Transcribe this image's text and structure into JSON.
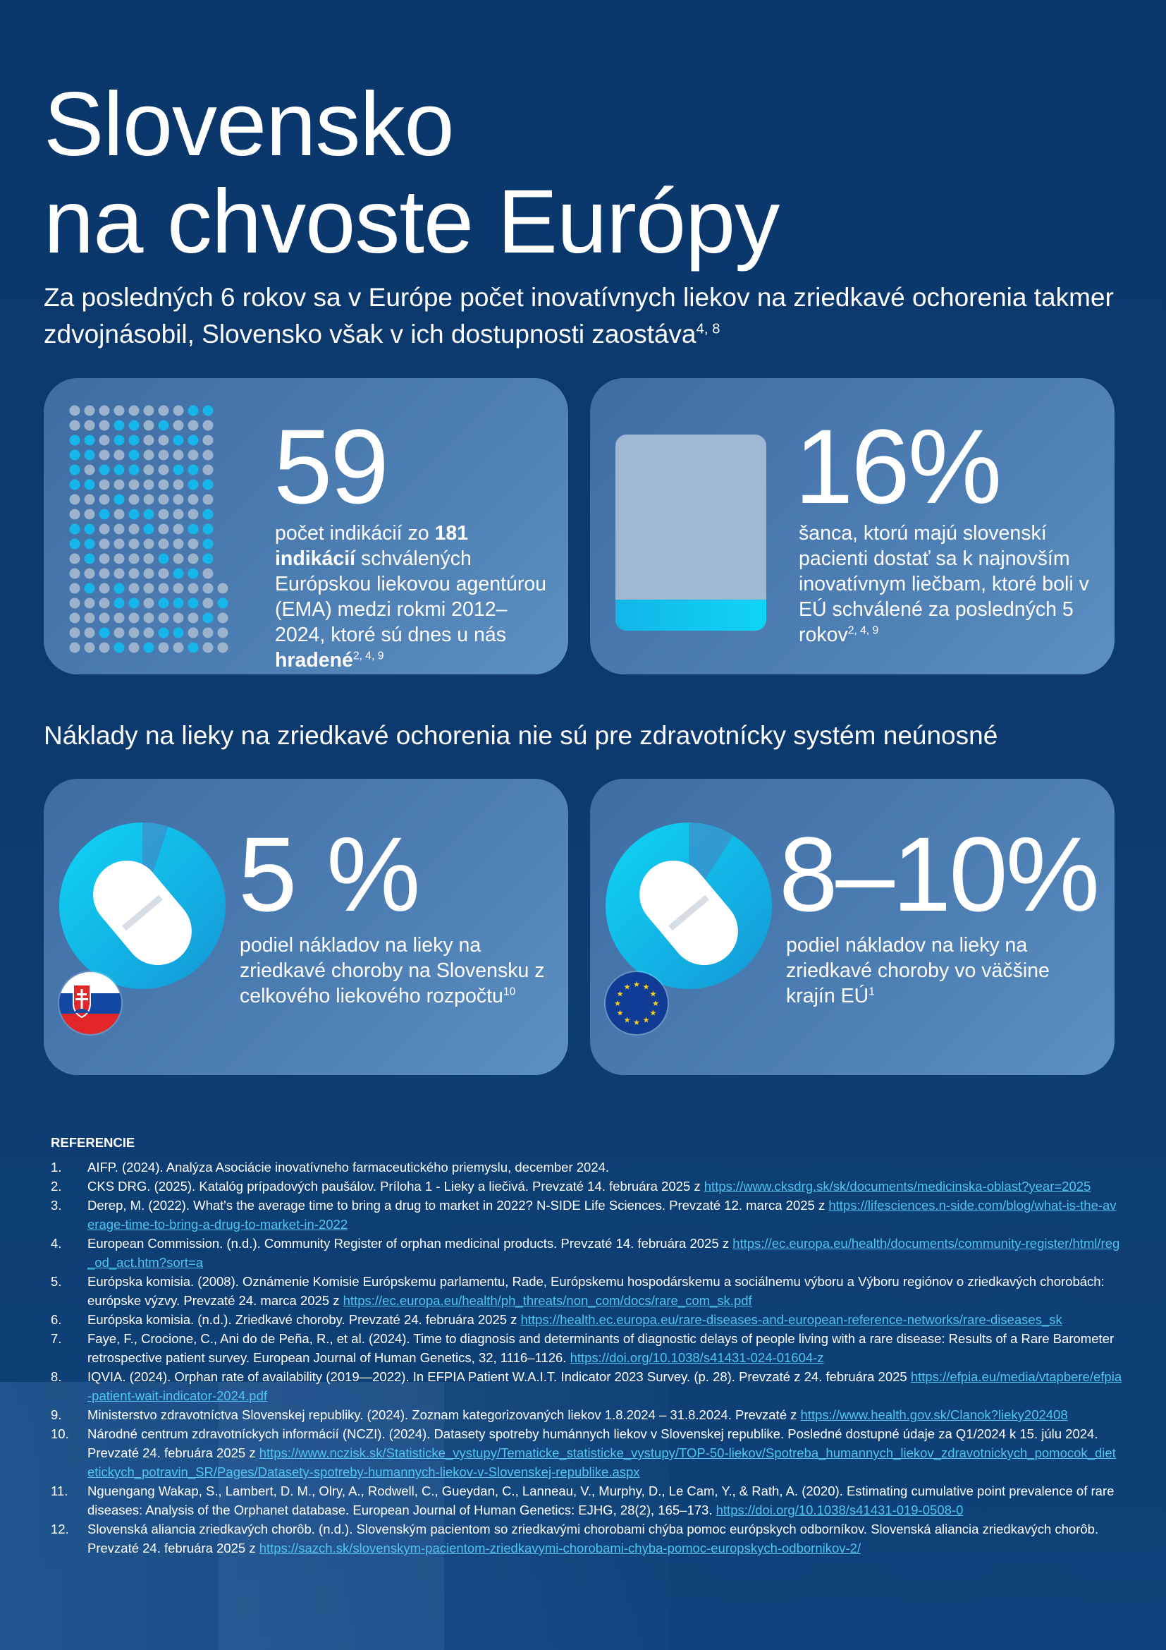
{
  "title": {
    "line1": "Slovensko",
    "line2": "na chvoste Európy"
  },
  "subtitle": {
    "text": "Za posledných 6 rokov sa v Európe počet inovatívnych liekov na zriedkavé ochorenia takmer zdvojnásobil, Slovensko však v ich dostupnosti zaostáva",
    "sup": "4, 8"
  },
  "stats": {
    "indications": {
      "value": "59",
      "pre": "počet indikácií zo ",
      "bold1": "181 indikácií",
      "mid": " schválených Európskou liekovou agentúrou (EMA) medzi rokmi 2012–2024, ktoré sú dnes u nás ",
      "bold2": "hradené",
      "sup": "2, 4, 9",
      "covered": 59,
      "total": 181
    },
    "chance": {
      "value": "16%",
      "desc": "šanca, ktorú majú slovenskí pacienti dostať sa k najnovším inovatívnym liečbam, ktoré boli v EÚ schválené za posledných 5 rokov",
      "sup": "2, 4, 9",
      "fill_percent": 16
    }
  },
  "section2": {
    "heading": "Náklady na lieky na zriedkavé ochorenia nie sú pre zdravotnícky systém neúnosné"
  },
  "costs": {
    "slovakia": {
      "value": "5 %",
      "desc": "podiel nákladov na lieky na zriedkavé choroby na Slovensku z celkového liekového rozpočtu",
      "sup": "10",
      "share_percent": 5
    },
    "eu": {
      "value": "8–10%",
      "desc": "podiel nákladov na lieky na zriedkavé choroby vo väčšine krajín EÚ",
      "sup": "1",
      "share_percent": 9
    }
  },
  "colors": {
    "background": "#0b3a6e",
    "accent": "#0fd5f5",
    "dot_active": "#16b6ea",
    "dot_inactive": "#9bb3cc",
    "link": "#4fc4f0"
  },
  "references": {
    "heading": "REFERENCIE",
    "items": [
      {
        "num": "1.",
        "text": "AIFP. (2024). Analýza Asociácie inovatívneho farmaceutického priemyslu, december 2024.",
        "link": ""
      },
      {
        "num": "2.",
        "text": "CKS DRG. (2025). Katalóg prípadových paušálov. Príloha 1 - Lieky a liečivá. Prevzaté 14. februára 2025 z ",
        "link": "https://www.cksdrg.sk/sk/documents/medicinska-oblast?year=2025"
      },
      {
        "num": "3.",
        "text": "Derep, M. (2022). What's the average time to bring a drug to market in 2022? N-SIDE Life Sciences. Prevzaté 12. marca 2025 z ",
        "link": "https://lifesciences.n-side.com/blog/what-is-the-average-time-to-bring-a-drug-to-market-in-2022"
      },
      {
        "num": "4.",
        "text": "European Commission. (n.d.). Community Register of orphan medicinal products. Prevzaté 14. februára 2025 z ",
        "link": "https://ec.europa.eu/health/documents/community-register/html/reg_od_act.htm?sort=a"
      },
      {
        "num": "5.",
        "text": "Európska komisia. (2008). Oznámenie Komisie Európskemu parlamentu, Rade, Európskemu hospodárskemu a sociálnemu výboru a Výboru regiónov o zriedkavých chorobách: európske výzvy. Prevzaté 24. marca 2025 z ",
        "link": "https://ec.europa.eu/health/ph_threats/non_com/docs/rare_com_sk.pdf"
      },
      {
        "num": "6.",
        "text": "Európska komisia. (n.d.). Zriedkavé choroby. Prevzaté 24. februára 2025 z ",
        "link": "https://health.ec.europa.eu/rare-diseases-and-european-reference-networks/rare-diseases_sk"
      },
      {
        "num": "7.",
        "text": "Faye, F., Crocione, C., Ani do de Peña, R., et al. (2024). Time to diagnosis and determinants of diagnostic delays of people living with a rare disease: Results of a Rare Barometer retrospective patient survey. European Journal of Human Genetics, 32, 1116–1126. ",
        "link": "https://doi.org/10.1038/s41431-024-01604-z"
      },
      {
        "num": "8.",
        "text": "IQVIA. (2024). Orphan rate of availability (2019—2022). In EFPIA Patient W.A.I.T. Indicator 2023 Survey. (p. 28). Prevzaté z  24. februára 2025 ",
        "link": "https://efpia.eu/media/vtapbere/efpia-patient-wait-indicator-2024.pdf"
      },
      {
        "num": "9.",
        "text": "Ministerstvo zdravotníctva Slovenskej republiky. (2024). Zoznam kategorizovaných liekov 1.8.2024 – 31.8.2024. Prevzaté z ",
        "link": "https://www.health.gov.sk/Clanok?lieky202408"
      },
      {
        "num": "10.",
        "text": "Národné centrum zdravotníckych informácií (NCZI). (2024). Datasety spotreby humánnych liekov v Slovenskej republike. Posledné dostupné údaje za Q1/2024 k 15. júlu 2024. Prevzaté 24. februára 2025 z ",
        "link": "https://www.nczisk.sk/Statisticke_vystupy/Tematicke_statisticke_vystupy/TOP-50-liekov/Spotreba_humannych_liekov_zdravotnickych_pomocok_dietetickych_potravin_SR/Pages/Datasety-spotreby-humannych-liekov-v-Slovenskej-republike.aspx"
      },
      {
        "num": "11.",
        "text": "Nguengang Wakap, S., Lambert, D. M., Olry, A., Rodwell, C., Gueydan, C., Lanneau, V., Murphy, D., Le Cam, Y., & Rath, A. (2020). Estimating cumulative point prevalence of rare diseases: Analysis of the Orphanet database. European Journal of Human Genetics: EJHG, 28(2), 165–173. ",
        "link": "https://doi.org/10.1038/s41431-019-0508-0"
      },
      {
        "num": "12.",
        "text": "Slovenská aliancia zriedkavých chorôb. (n.d.). Slovenským pacientom so zriedkavými chorobami chýba pomoc európskych odborníkov. Slovenská aliancia zriedkavých chorôb. Prevzaté 24. februára 2025 z ",
        "link": "https://sazch.sk/slovenskym-pacientom-zriedkavymi-chorobami-chyba-pomoc-europskych-odbornikov-2/"
      }
    ]
  }
}
